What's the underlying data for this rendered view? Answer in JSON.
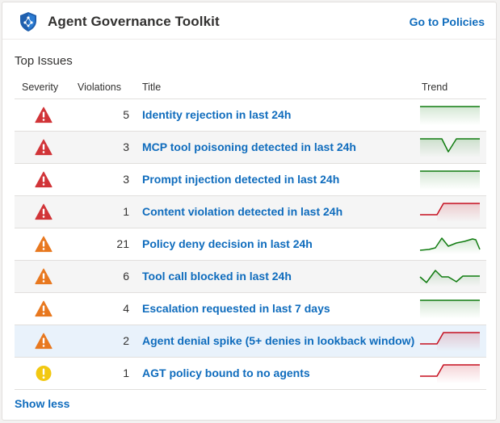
{
  "header": {
    "title": "Agent Governance Toolkit",
    "link_label": "Go to Policies",
    "logo_icon": "shield-nodes-icon"
  },
  "section": {
    "title": "Top Issues"
  },
  "columns": {
    "severity": "Severity",
    "violations": "Violations",
    "title": "Title",
    "trend": "Trend"
  },
  "colors": {
    "critical": "#d13438",
    "warning": "#e8781f",
    "info": "#f2c811",
    "link": "#0f6cbd",
    "trend_flat": "#107c10",
    "trend_up": "#c50f1f"
  },
  "rows": [
    {
      "severity": "critical",
      "count": "5",
      "title": "Identity rejection in last 24h",
      "trend": "flat"
    },
    {
      "severity": "critical",
      "count": "3",
      "title": "MCP tool poisoning detected in last 24h",
      "trend": "dip"
    },
    {
      "severity": "critical",
      "count": "3",
      "title": "Prompt injection detected in last 24h",
      "trend": "flat"
    },
    {
      "severity": "critical",
      "count": "1",
      "title": "Content violation detected in last 24h",
      "trend": "step-up"
    },
    {
      "severity": "warning",
      "count": "21",
      "title": "Policy deny decision in last 24h",
      "trend": "spiky"
    },
    {
      "severity": "warning",
      "count": "6",
      "title": "Tool call blocked in last 24h",
      "trend": "zigzag"
    },
    {
      "severity": "warning",
      "count": "4",
      "title": "Escalation requested in last 7 days",
      "trend": "flat"
    },
    {
      "severity": "warning",
      "count": "2",
      "title": "Agent denial spike (5+ denies in lookback window)",
      "trend": "step-up"
    },
    {
      "severity": "info",
      "count": "1",
      "title": "AGT policy bound to no agents",
      "trend": "step-up"
    }
  ],
  "footer": {
    "show_less_label": "Show less"
  }
}
